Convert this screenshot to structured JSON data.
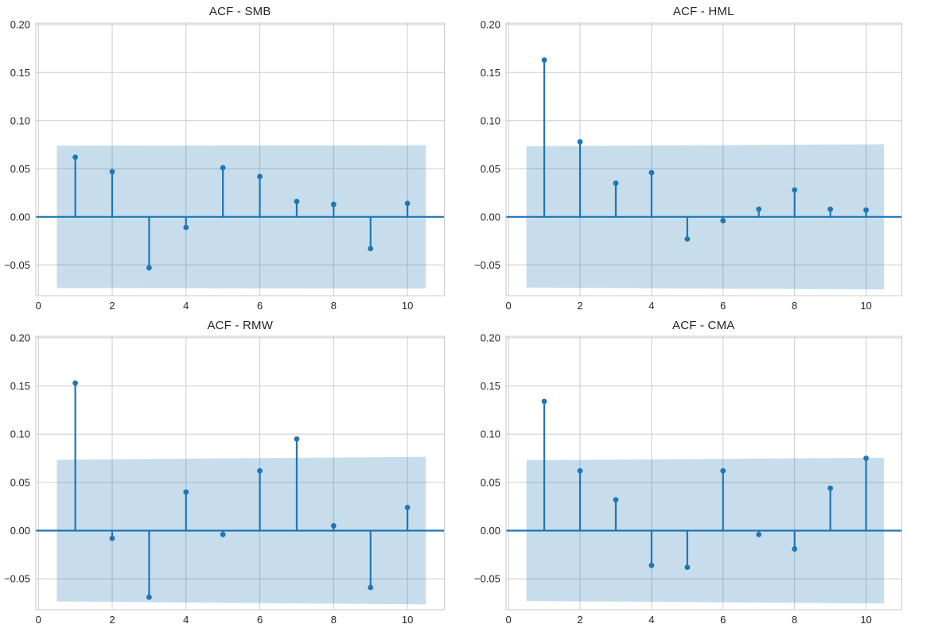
{
  "palette": {
    "stem_color": "#1f77b4",
    "marker_color": "#1f77b4",
    "zero_line_color": "#1f77b4",
    "band_fill": "rgba(31,119,180,0.25)",
    "grid_color": "#cccccc",
    "spine_color": "#c8c8c8",
    "tick_text_color": "#262626",
    "background": "#ffffff"
  },
  "chart_data": [
    {
      "type": "stem",
      "title": "ACF - SMB",
      "xlabel": "",
      "ylabel": "",
      "x": [
        1,
        2,
        3,
        4,
        5,
        6,
        7,
        8,
        9,
        10
      ],
      "values": [
        0.062,
        0.047,
        -0.053,
        -0.011,
        0.051,
        0.042,
        0.016,
        0.013,
        -0.033,
        0.014
      ],
      "baseline": 0,
      "conf_band": {
        "x_start": 0.5,
        "x_end": 10.5,
        "half_width_start": 0.074,
        "half_width_end": 0.0745
      },
      "xlim": [
        -0.07,
        11.0
      ],
      "ylim": [
        -0.082,
        0.2015
      ],
      "xticks": [
        0,
        2,
        4,
        6,
        8,
        10
      ],
      "xtick_labels": [
        "0",
        "2",
        "4",
        "6",
        "8",
        "10"
      ],
      "ytick_values": [
        0.2,
        0.15,
        0.1,
        0.05,
        0.0,
        -0.05
      ],
      "ytick_labels": [
        "0.20",
        "0.15",
        "0.10",
        "0.05",
        "0.00",
        "−0.05"
      ],
      "grid": true,
      "legend": null
    },
    {
      "type": "stem",
      "title": "ACF - HML",
      "xlabel": "",
      "ylabel": "",
      "x": [
        1,
        2,
        3,
        4,
        5,
        6,
        7,
        8,
        9,
        10
      ],
      "values": [
        0.163,
        0.078,
        0.035,
        0.046,
        -0.023,
        -0.004,
        0.008,
        0.028,
        0.008,
        0.007
      ],
      "baseline": 0,
      "conf_band": {
        "x_start": 0.5,
        "x_end": 10.5,
        "half_width_start": 0.0735,
        "half_width_end": 0.0755
      },
      "xlim": [
        -0.07,
        11.0
      ],
      "ylim": [
        -0.082,
        0.2015
      ],
      "xticks": [
        0,
        2,
        4,
        6,
        8,
        10
      ],
      "xtick_labels": [
        "0",
        "2",
        "4",
        "6",
        "8",
        "10"
      ],
      "ytick_values": [
        0.2,
        0.15,
        0.1,
        0.05,
        0.0,
        -0.05
      ],
      "ytick_labels": [
        "0.20",
        "0.15",
        "0.10",
        "0.05",
        "0.00",
        "−0.05"
      ],
      "grid": true,
      "legend": null
    },
    {
      "type": "stem",
      "title": "ACF - RMW",
      "xlabel": "",
      "ylabel": "",
      "x": [
        1,
        2,
        3,
        4,
        5,
        6,
        7,
        8,
        9,
        10
      ],
      "values": [
        0.153,
        -0.008,
        -0.069,
        0.04,
        -0.004,
        0.062,
        0.095,
        0.005,
        -0.059,
        0.024
      ],
      "baseline": 0,
      "conf_band": {
        "x_start": 0.5,
        "x_end": 10.5,
        "half_width_start": 0.0735,
        "half_width_end": 0.0765
      },
      "xlim": [
        -0.07,
        11.0
      ],
      "ylim": [
        -0.082,
        0.2015
      ],
      "xticks": [
        0,
        2,
        4,
        6,
        8,
        10
      ],
      "xtick_labels": [
        "0",
        "2",
        "4",
        "6",
        "8",
        "10"
      ],
      "ytick_values": [
        0.2,
        0.15,
        0.1,
        0.05,
        0.0,
        -0.05
      ],
      "ytick_labels": [
        "0.20",
        "0.15",
        "0.10",
        "0.05",
        "0.00",
        "−0.05"
      ],
      "grid": true,
      "legend": null
    },
    {
      "type": "stem",
      "title": "ACF - CMA",
      "xlabel": "",
      "ylabel": "",
      "x": [
        1,
        2,
        3,
        4,
        5,
        6,
        7,
        8,
        9,
        10
      ],
      "values": [
        0.134,
        0.062,
        0.032,
        -0.036,
        -0.038,
        0.062,
        -0.004,
        -0.019,
        0.044,
        0.075
      ],
      "baseline": 0,
      "conf_band": {
        "x_start": 0.5,
        "x_end": 10.5,
        "half_width_start": 0.073,
        "half_width_end": 0.0755
      },
      "xlim": [
        -0.07,
        11.0
      ],
      "ylim": [
        -0.082,
        0.2015
      ],
      "xticks": [
        0,
        2,
        4,
        6,
        8,
        10
      ],
      "xtick_labels": [
        "0",
        "2",
        "4",
        "6",
        "8",
        "10"
      ],
      "ytick_values": [
        0.2,
        0.15,
        0.1,
        0.05,
        0.0,
        -0.05
      ],
      "ytick_labels": [
        "0.20",
        "0.15",
        "0.10",
        "0.05",
        "0.00",
        "−0.05"
      ],
      "grid": true,
      "legend": null
    }
  ]
}
